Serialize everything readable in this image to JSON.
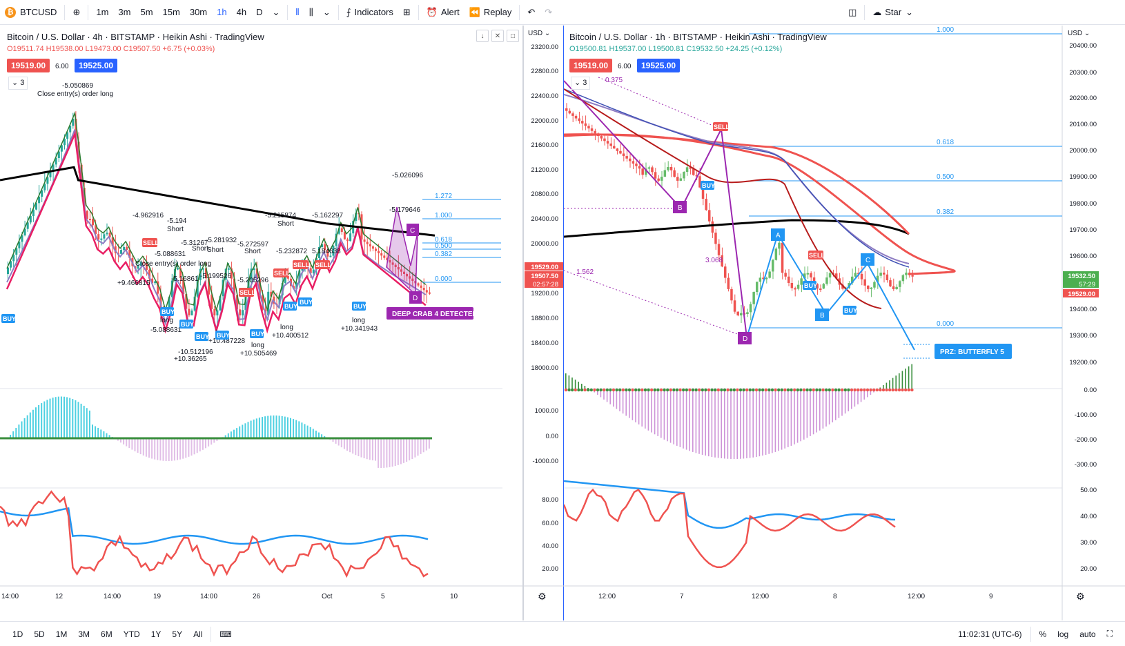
{
  "toolbar": {
    "symbol": "BTCUSD",
    "intervals": [
      "1m",
      "3m",
      "5m",
      "15m",
      "30m",
      "1h",
      "4h",
      "D"
    ],
    "active_interval": "1h",
    "indicators_label": "Indicators",
    "alert_label": "Alert",
    "replay_label": "Replay",
    "star_label": "Star"
  },
  "left_chart": {
    "title": "Bitcoin / U.S. Dollar · 4h · BITSTAMP · Heikin Ashi · TradingView",
    "ohlc": "O19511.74 H19538.00 L19473.00 C19507.50 +6.75 (+0.03%)",
    "sell_price": "19519.00",
    "spread": "6.00",
    "buy_price": "19525.00",
    "collapse_count": "3",
    "currency": "USD",
    "price_axis": [
      "23200.00",
      "22800.00",
      "22400.00",
      "22000.00",
      "21600.00",
      "21200.00",
      "20800.00",
      "20400.00",
      "20000.00",
      "19200.00",
      "18800.00",
      "18400.00",
      "18000.00"
    ],
    "price_tag_1": "19529.00",
    "price_tag_2": "19507.50",
    "price_tag_3": "02:57:28",
    "macd_axis": [
      "1000.00",
      "0.00",
      "-1000.00"
    ],
    "rsi_axis": [
      "80.00",
      "60.00",
      "40.00",
      "20.00"
    ],
    "time_axis": [
      "14:00",
      "12",
      "14:00",
      "19",
      "14:00",
      "26",
      "Oct",
      "5",
      "10"
    ],
    "fib_levels": [
      "1.272",
      "1.000",
      "0.618",
      "0.500",
      "0.382",
      "0.000"
    ],
    "pattern_label": "DEEP CRAB 4 DETECTED",
    "annotations": [
      "-5.050869",
      "Close entry(s) order long",
      "-4.962916",
      "-5.194",
      "Short",
      "-5.31267",
      "-5.281932",
      "Short",
      "-5.272597",
      "-5.215874",
      "-5.162297",
      "-5.026096",
      "-5.179646",
      "-5.088631",
      "Close entry(s) order long",
      "+9.466815",
      "-5.16861",
      "-5.199526",
      "-5.205296",
      "-5.232872",
      "5.184638",
      "+10.341943",
      "long",
      "+10.400512",
      "long",
      "+10.505469",
      "long",
      "+10.487228",
      "long",
      "+10.36265",
      "-10.512196",
      "-5.088631",
      "long",
      "Short",
      "Short",
      "Short"
    ]
  },
  "right_chart": {
    "title": "Bitcoin / U.S. Dollar · 1h · BITSTAMP · Heikin Ashi · TradingView",
    "ohlc": "O19500.81 H19537.00 L19500.81 C19532.50 +24.25 (+0.12%)",
    "sell_price": "19519.00",
    "spread": "6.00",
    "buy_price": "19525.00",
    "collapse_count": "3",
    "currency": "USD",
    "price_axis": [
      "20400.00",
      "20300.00",
      "20200.00",
      "20100.00",
      "20000.00",
      "19900.00",
      "19800.00",
      "19700.00",
      "19600.00",
      "19400.00",
      "19300.00",
      "19200.00"
    ],
    "price_tag_1": "19532.50",
    "price_tag_2": "57:29",
    "price_tag_3": "19529.00",
    "macd_axis": [
      "0.00",
      "-100.00",
      "-200.00",
      "-300.00"
    ],
    "rsi_axis": [
      "50.00",
      "40.00",
      "30.00",
      "20.00"
    ],
    "time_axis": [
      "12:00",
      "7",
      "12:00",
      "8",
      "12:00",
      "9"
    ],
    "fib_levels": [
      "1.000",
      "0.618",
      "0.500",
      "0.382",
      "0.000"
    ],
    "pattern_label": "PRZ: BUTTERFLY 5",
    "ratio_labels": [
      "0.375",
      "1.562",
      "3.068"
    ],
    "point_labels": [
      "A",
      "B",
      "C",
      "D",
      "B"
    ]
  },
  "bottom": {
    "ranges": [
      "1D",
      "5D",
      "1M",
      "3M",
      "6M",
      "YTD",
      "1Y",
      "5Y",
      "All"
    ],
    "clock": "11:02:31 (UTC-6)",
    "percent_label": "%",
    "log_label": "log",
    "auto_label": "auto"
  },
  "colors": {
    "up": "#26a69a",
    "down": "#ef5350",
    "accent": "#2962ff",
    "pattern": "#9c27b0",
    "fib": "#2196f3"
  }
}
